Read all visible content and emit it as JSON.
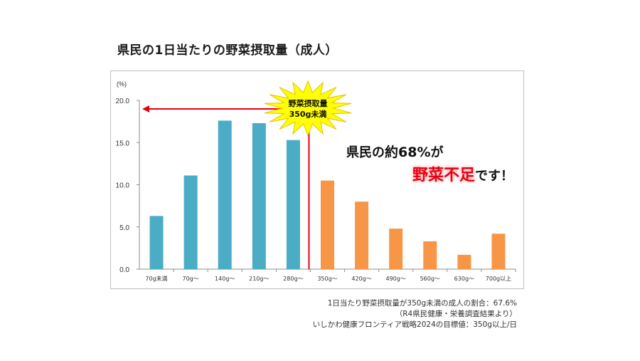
{
  "title": "県民の1日当たりの野菜摂取量（成人）",
  "chart_data": {
    "type": "bar",
    "ylabel": "(%)",
    "ylim": [
      0,
      20
    ],
    "yticks": [
      "0.0",
      "5.0",
      "10.0",
      "15.0",
      "20.0"
    ],
    "categories": [
      "70g未満",
      "70g～",
      "140g～",
      "210g～",
      "280g～",
      "350g～",
      "420g～",
      "490g～",
      "560g～",
      "630g～",
      "700g以上"
    ],
    "values": [
      6.3,
      11.1,
      17.6,
      17.3,
      15.3,
      10.5,
      8.0,
      4.8,
      3.3,
      1.7,
      4.2
    ],
    "colors": [
      "#4bacc6",
      "#4bacc6",
      "#4bacc6",
      "#4bacc6",
      "#4bacc6",
      "#f79646",
      "#f79646",
      "#f79646",
      "#f79646",
      "#f79646",
      "#f79646"
    ],
    "threshold_category_index": 5,
    "grid": false
  },
  "burst": {
    "line1": "野菜摂取量",
    "line2": "350g未満"
  },
  "callout": {
    "part1": "県民の",
    "part2": "約68%",
    "part3": "が",
    "red": "野菜不足",
    "part4": "です！"
  },
  "notes": {
    "line1": "1日当たり野菜摂取量が350g未満の成人の割合：67.6%",
    "line2": "（R4県民健康・栄養調査結果より）",
    "line3": "いしかわ健康フロンティア戦略2024の目標値：350g以上/日"
  },
  "colors": {
    "blue_bar": "#4bacc6",
    "orange_bar": "#f79646",
    "marker_red": "#e60012",
    "burst_yellow": "#ffff00"
  }
}
